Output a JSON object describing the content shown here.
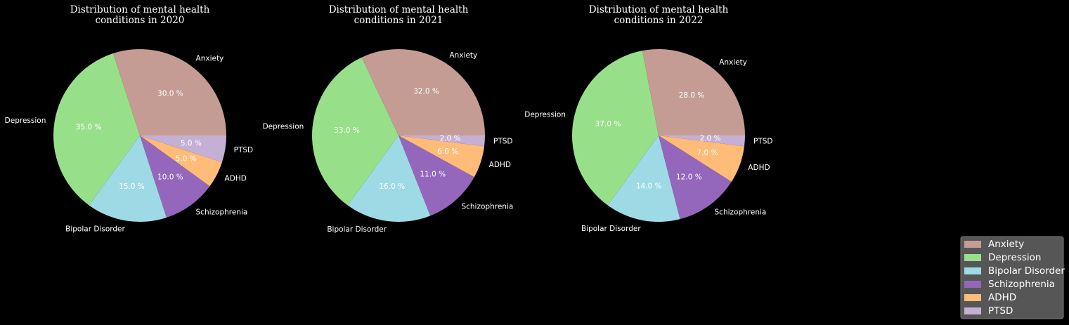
{
  "chart_data": {
    "type": "pie",
    "categories": [
      "Anxiety",
      "Depression",
      "Bipolar Disorder",
      "Schizophrenia",
      "ADHD",
      "PTSD"
    ],
    "colors": [
      "#c49c94",
      "#98df8a",
      "#9edae5",
      "#9467bd",
      "#ffbb78",
      "#c5b0d5"
    ],
    "pct_suffix": " %",
    "legend_placement": "bottom-right",
    "charts": [
      {
        "title_line1": "Distribution of mental health",
        "title_line2": "conditions in 2020",
        "values": [
          30,
          35,
          15,
          10,
          5,
          5
        ]
      },
      {
        "title_line1": "Distribution of mental health",
        "title_line2": "conditions in 2021",
        "values": [
          32,
          33,
          16,
          11,
          6,
          2
        ]
      },
      {
        "title_line1": "Distribution of mental health",
        "title_line2": "conditions in 2022",
        "values": [
          28,
          37,
          14,
          12,
          7,
          2
        ]
      }
    ]
  }
}
